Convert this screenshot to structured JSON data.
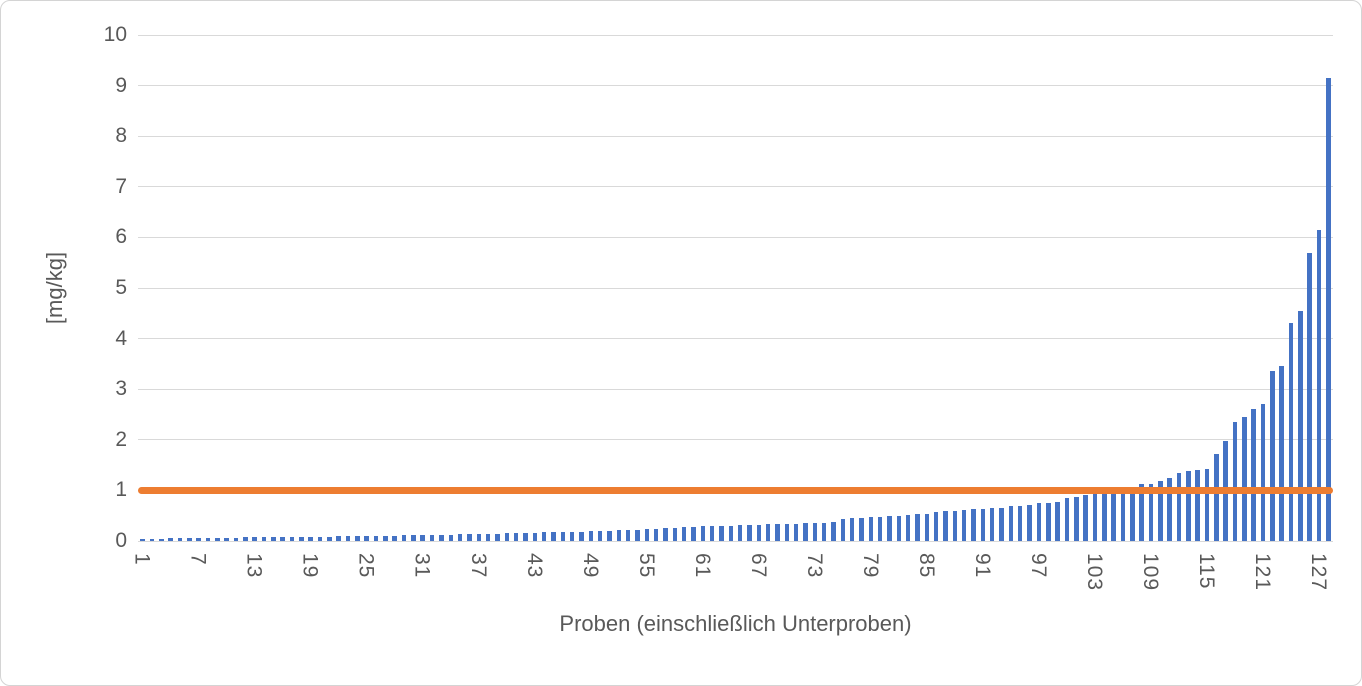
{
  "chart": {
    "x_title": "Proben (einschließlich Unterproben)",
    "y_title": "[mg/kg]"
  },
  "chart_data": {
    "type": "bar",
    "title": "",
    "xlabel": "Proben (einschließlich Unterproben)",
    "ylabel": "[mg/kg]",
    "ylim": [
      0,
      10
    ],
    "y_tick_step": 1,
    "y_tick_labels": [
      "0",
      "1",
      "2",
      "3",
      "4",
      "5",
      "6",
      "7",
      "8",
      "9",
      "10"
    ],
    "grid": true,
    "legend_position": "none",
    "n_categories": 128,
    "x_tick_interval": 6,
    "x_tick_labels": [
      "1",
      "7",
      "13",
      "19",
      "25",
      "31",
      "37",
      "43",
      "49",
      "55",
      "61",
      "67",
      "73",
      "79",
      "85",
      "91",
      "97",
      "103",
      "109",
      "115",
      "121",
      "127"
    ],
    "bar_color": "#4472C4",
    "gridline_color": "#D9D9D9",
    "text_color": "#595959",
    "reference_line": {
      "value": 1,
      "color": "#ED7D31"
    },
    "values": [
      0.04,
      0.04,
      0.04,
      0.05,
      0.05,
      0.05,
      0.05,
      0.06,
      0.06,
      0.06,
      0.06,
      0.07,
      0.07,
      0.07,
      0.07,
      0.07,
      0.08,
      0.08,
      0.08,
      0.08,
      0.08,
      0.09,
      0.09,
      0.09,
      0.09,
      0.1,
      0.1,
      0.1,
      0.11,
      0.11,
      0.11,
      0.12,
      0.12,
      0.12,
      0.13,
      0.13,
      0.14,
      0.14,
      0.14,
      0.15,
      0.15,
      0.16,
      0.16,
      0.17,
      0.17,
      0.18,
      0.18,
      0.18,
      0.19,
      0.19,
      0.2,
      0.21,
      0.21,
      0.22,
      0.23,
      0.24,
      0.25,
      0.26,
      0.27,
      0.28,
      0.29,
      0.29,
      0.3,
      0.3,
      0.31,
      0.32,
      0.32,
      0.33,
      0.33,
      0.34,
      0.34,
      0.35,
      0.35,
      0.36,
      0.38,
      0.43,
      0.45,
      0.46,
      0.47,
      0.48,
      0.49,
      0.5,
      0.52,
      0.53,
      0.54,
      0.57,
      0.59,
      0.6,
      0.62,
      0.63,
      0.64,
      0.66,
      0.66,
      0.69,
      0.7,
      0.72,
      0.75,
      0.76,
      0.78,
      0.85,
      0.87,
      0.91,
      0.97,
      0.98,
      0.99,
      1.02,
      1.07,
      1.12,
      1.12,
      1.18,
      1.24,
      1.35,
      1.38,
      1.4,
      1.43,
      1.72,
      1.98,
      2.35,
      2.45,
      2.6,
      2.7,
      3.35,
      3.45,
      4.3,
      4.55,
      5.7,
      6.15,
      9.15
    ]
  }
}
